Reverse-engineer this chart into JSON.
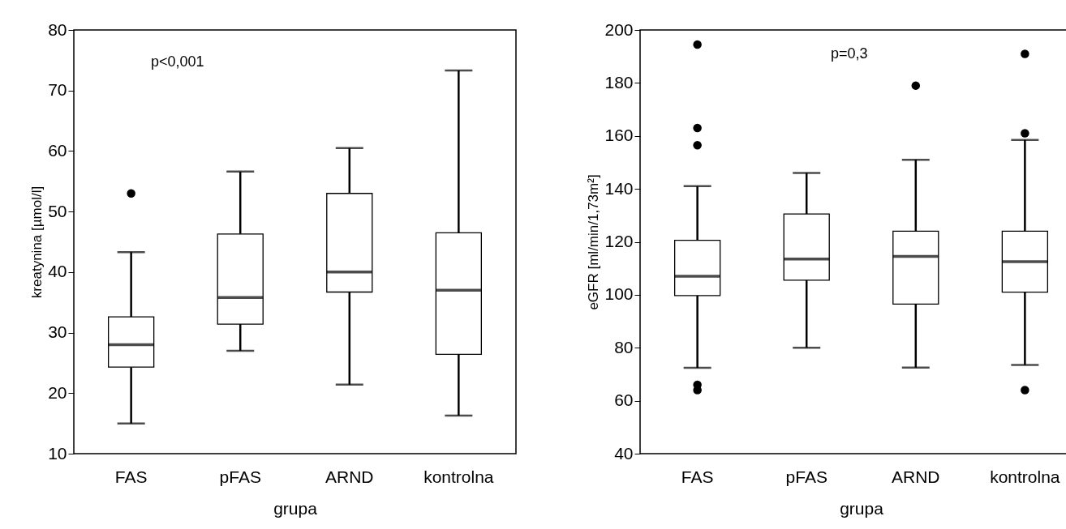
{
  "chart_data": [
    {
      "type": "box",
      "xlabel": "grupa",
      "ylabel": "kreatynina [µmol/l]",
      "categories": [
        "FAS",
        "pFAS",
        "ARND",
        "kontrolna"
      ],
      "ylim": [
        10,
        80
      ],
      "yticks": [
        10,
        20,
        30,
        40,
        50,
        60,
        70,
        80
      ],
      "grid": false,
      "annotations": [
        "p<0,001"
      ],
      "boxes": [
        {
          "low": 15,
          "q1": 24.3,
          "median": 28,
          "q3": 32.6,
          "high": 43.3,
          "outliers": [
            53
          ]
        },
        {
          "low": 27,
          "q1": 31.4,
          "median": 35.8,
          "q3": 46.3,
          "high": 56.6
        },
        {
          "low": 21.4,
          "q1": 36.7,
          "median": 40,
          "q3": 53,
          "high": 60.5
        },
        {
          "low": 16.3,
          "q1": 26.4,
          "median": 37,
          "q3": 46.5,
          "high": 73.3
        }
      ]
    },
    {
      "type": "box",
      "xlabel": "grupa",
      "ylabel": "eGFR [ml/min/1,73m²]",
      "categories": [
        "FAS",
        "pFAS",
        "ARND",
        "kontrolna"
      ],
      "ylim": [
        40,
        200
      ],
      "yticks": [
        40,
        60,
        80,
        100,
        120,
        140,
        160,
        180,
        200
      ],
      "grid": false,
      "annotations": [
        "p=0,3"
      ],
      "boxes": [
        {
          "low": 72.4,
          "q1": 99.7,
          "median": 107,
          "q3": 120.6,
          "high": 141,
          "outliers": [
            194.5,
            163,
            156.5,
            66,
            64
          ]
        },
        {
          "low": 80,
          "q1": 105.5,
          "median": 113.5,
          "q3": 130.5,
          "high": 146
        },
        {
          "low": 72.5,
          "q1": 96.5,
          "median": 114.5,
          "q3": 124,
          "high": 151,
          "outliers": [
            179
          ]
        },
        {
          "low": 73.5,
          "q1": 101,
          "median": 112.5,
          "q3": 124,
          "high": 158.5,
          "outliers": [
            191,
            161,
            64
          ]
        }
      ]
    }
  ]
}
